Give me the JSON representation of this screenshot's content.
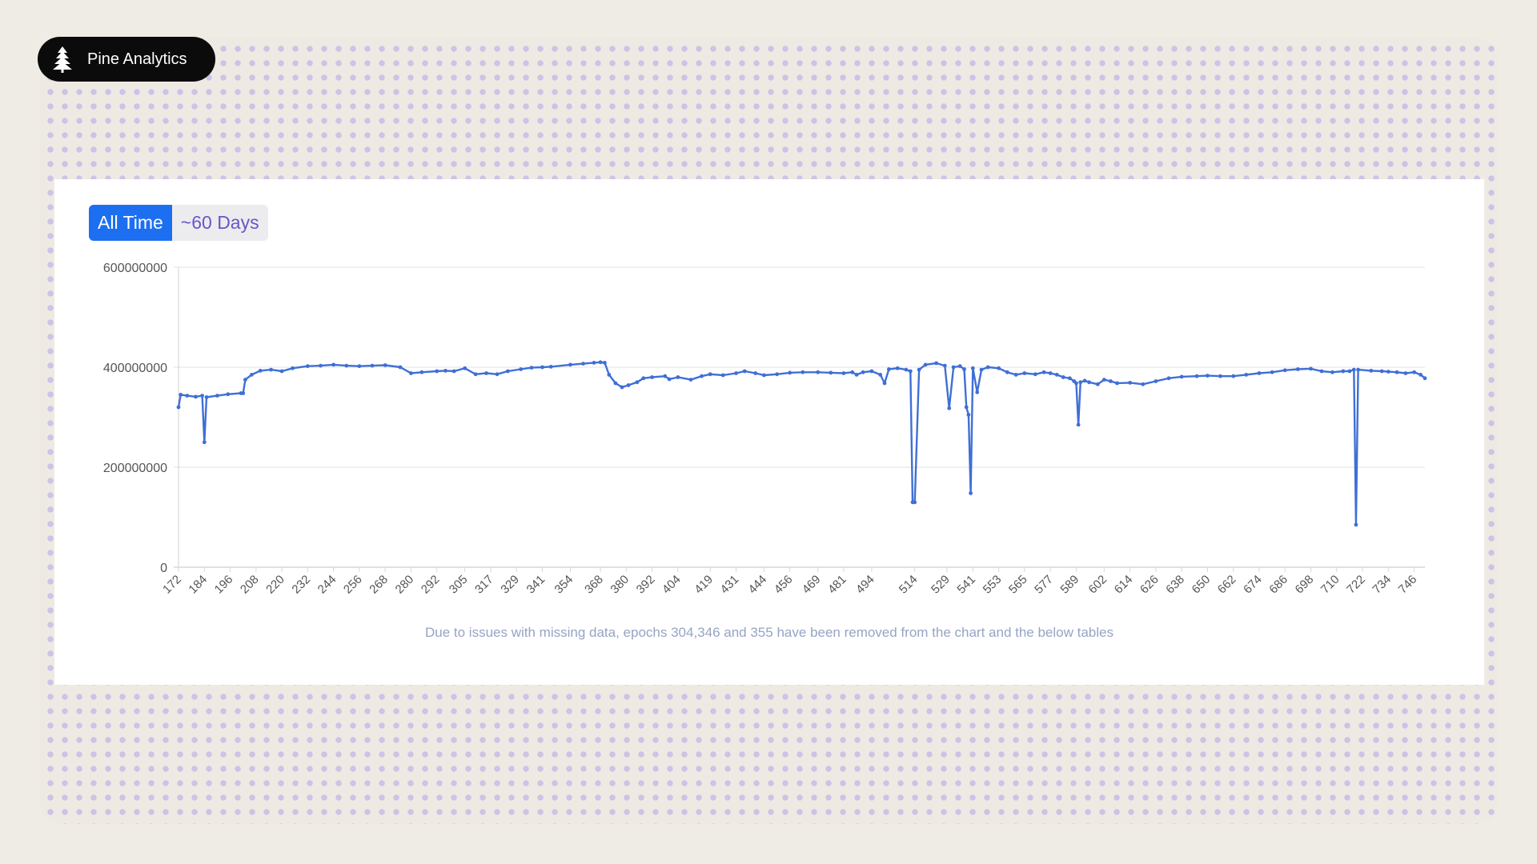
{
  "brand": {
    "name": "Pine Analytics",
    "icon": "pine-tree-icon"
  },
  "toggle": {
    "options": [
      {
        "label": "All Time",
        "active": true
      },
      {
        "label": "~60 Days",
        "active": false
      }
    ]
  },
  "footnote": "Due to issues with missing data, epochs 304,346 and 355 have been removed from the chart and the below tables",
  "colors": {
    "line": "#3f6fd6",
    "active_button": "#1d6ff2",
    "inactive_text": "#6b55c8",
    "pill": "#0b0b0b"
  },
  "chart_data": {
    "type": "line",
    "title": "",
    "xlabel": "",
    "ylabel": "",
    "ylim": [
      0,
      600000000
    ],
    "yticks": [
      "0",
      "200000000",
      "400000000",
      "600000000"
    ],
    "xlim": [
      172,
      751
    ],
    "xticks": [
      "172",
      "184",
      "196",
      "208",
      "220",
      "232",
      "244",
      "256",
      "268",
      "280",
      "292",
      "305",
      "317",
      "329",
      "341",
      "354",
      "368",
      "380",
      "392",
      "404",
      "419",
      "431",
      "444",
      "456",
      "469",
      "481",
      "494",
      "514",
      "529",
      "541",
      "553",
      "565",
      "577",
      "589",
      "602",
      "614",
      "626",
      "638",
      "650",
      "662",
      "674",
      "686",
      "698",
      "710",
      "722",
      "734",
      "746"
    ],
    "grid": true,
    "legend": "none",
    "series": [
      {
        "points": [
          [
            172,
            320000000
          ],
          [
            173,
            345000000
          ],
          [
            176,
            343000000
          ],
          [
            180,
            341000000
          ],
          [
            183,
            343000000
          ],
          [
            184,
            250000000
          ],
          [
            185,
            340000000
          ],
          [
            190,
            343000000
          ],
          [
            195,
            346000000
          ],
          [
            201,
            348000000
          ],
          [
            202,
            348000000
          ],
          [
            203,
            375000000
          ],
          [
            206,
            385000000
          ],
          [
            210,
            393000000
          ],
          [
            215,
            395000000
          ],
          [
            220,
            392000000
          ],
          [
            225,
            398000000
          ],
          [
            232,
            402000000
          ],
          [
            238,
            403000000
          ],
          [
            244,
            405000000
          ],
          [
            250,
            403000000
          ],
          [
            256,
            402000000
          ],
          [
            262,
            403000000
          ],
          [
            268,
            404000000
          ],
          [
            275,
            400000000
          ],
          [
            280,
            388000000
          ],
          [
            285,
            390000000
          ],
          [
            292,
            392000000
          ],
          [
            296,
            393000000
          ],
          [
            300,
            392000000
          ],
          [
            305,
            398000000
          ],
          [
            310,
            386000000
          ],
          [
            315,
            388000000
          ],
          [
            320,
            386000000
          ],
          [
            325,
            392000000
          ],
          [
            331,
            396000000
          ],
          [
            336,
            399000000
          ],
          [
            341,
            400000000
          ],
          [
            345,
            401000000
          ],
          [
            354,
            405000000
          ],
          [
            360,
            407000000
          ],
          [
            365,
            409000000
          ],
          [
            368,
            410000000
          ],
          [
            370,
            409000000
          ],
          [
            372,
            385000000
          ],
          [
            375,
            368000000
          ],
          [
            378,
            360000000
          ],
          [
            381,
            364000000
          ],
          [
            385,
            370000000
          ],
          [
            388,
            378000000
          ],
          [
            392,
            380000000
          ],
          [
            398,
            382000000
          ],
          [
            400,
            376000000
          ],
          [
            404,
            380000000
          ],
          [
            410,
            375000000
          ],
          [
            415,
            382000000
          ],
          [
            419,
            386000000
          ],
          [
            425,
            384000000
          ],
          [
            431,
            388000000
          ],
          [
            435,
            392000000
          ],
          [
            440,
            388000000
          ],
          [
            444,
            384000000
          ],
          [
            450,
            386000000
          ],
          [
            456,
            389000000
          ],
          [
            462,
            390000000
          ],
          [
            469,
            390000000
          ],
          [
            475,
            389000000
          ],
          [
            481,
            388000000
          ],
          [
            485,
            390000000
          ],
          [
            487,
            385000000
          ],
          [
            490,
            390000000
          ],
          [
            494,
            392000000
          ],
          [
            498,
            385000000
          ],
          [
            500,
            368000000
          ],
          [
            502,
            396000000
          ],
          [
            506,
            398000000
          ],
          [
            510,
            395000000
          ],
          [
            512,
            392000000
          ],
          [
            513,
            130000000
          ],
          [
            514,
            130000000
          ],
          [
            516,
            395000000
          ],
          [
            519,
            405000000
          ],
          [
            524,
            408000000
          ],
          [
            528,
            403000000
          ],
          [
            530,
            318000000
          ],
          [
            532,
            400000000
          ],
          [
            535,
            402000000
          ],
          [
            537,
            396000000
          ],
          [
            538,
            320000000
          ],
          [
            539,
            305000000
          ],
          [
            540,
            148000000
          ],
          [
            541,
            398000000
          ],
          [
            543,
            350000000
          ],
          [
            545,
            395000000
          ],
          [
            548,
            400000000
          ],
          [
            553,
            398000000
          ],
          [
            557,
            390000000
          ],
          [
            561,
            385000000
          ],
          [
            565,
            388000000
          ],
          [
            570,
            386000000
          ],
          [
            574,
            390000000
          ],
          [
            577,
            388000000
          ],
          [
            580,
            385000000
          ],
          [
            583,
            380000000
          ],
          [
            586,
            378000000
          ],
          [
            588,
            372000000
          ],
          [
            589,
            368000000
          ],
          [
            590,
            285000000
          ],
          [
            591,
            370000000
          ],
          [
            593,
            373000000
          ],
          [
            595,
            370000000
          ],
          [
            599,
            366000000
          ],
          [
            602,
            375000000
          ],
          [
            605,
            372000000
          ],
          [
            608,
            368000000
          ],
          [
            614,
            369000000
          ],
          [
            620,
            366000000
          ],
          [
            626,
            372000000
          ],
          [
            632,
            378000000
          ],
          [
            638,
            381000000
          ],
          [
            645,
            382000000
          ],
          [
            650,
            383000000
          ],
          [
            656,
            382000000
          ],
          [
            662,
            382000000
          ],
          [
            668,
            385000000
          ],
          [
            674,
            388000000
          ],
          [
            680,
            390000000
          ],
          [
            686,
            394000000
          ],
          [
            692,
            396000000
          ],
          [
            698,
            397000000
          ],
          [
            703,
            392000000
          ],
          [
            708,
            390000000
          ],
          [
            713,
            392000000
          ],
          [
            716,
            392000000
          ],
          [
            718,
            395000000
          ],
          [
            719,
            85000000
          ],
          [
            720,
            395000000
          ],
          [
            726,
            393000000
          ],
          [
            731,
            392000000
          ],
          [
            734,
            391000000
          ],
          [
            738,
            390000000
          ],
          [
            742,
            388000000
          ],
          [
            746,
            390000000
          ],
          [
            749,
            385000000
          ],
          [
            751,
            378000000
          ]
        ]
      }
    ]
  }
}
